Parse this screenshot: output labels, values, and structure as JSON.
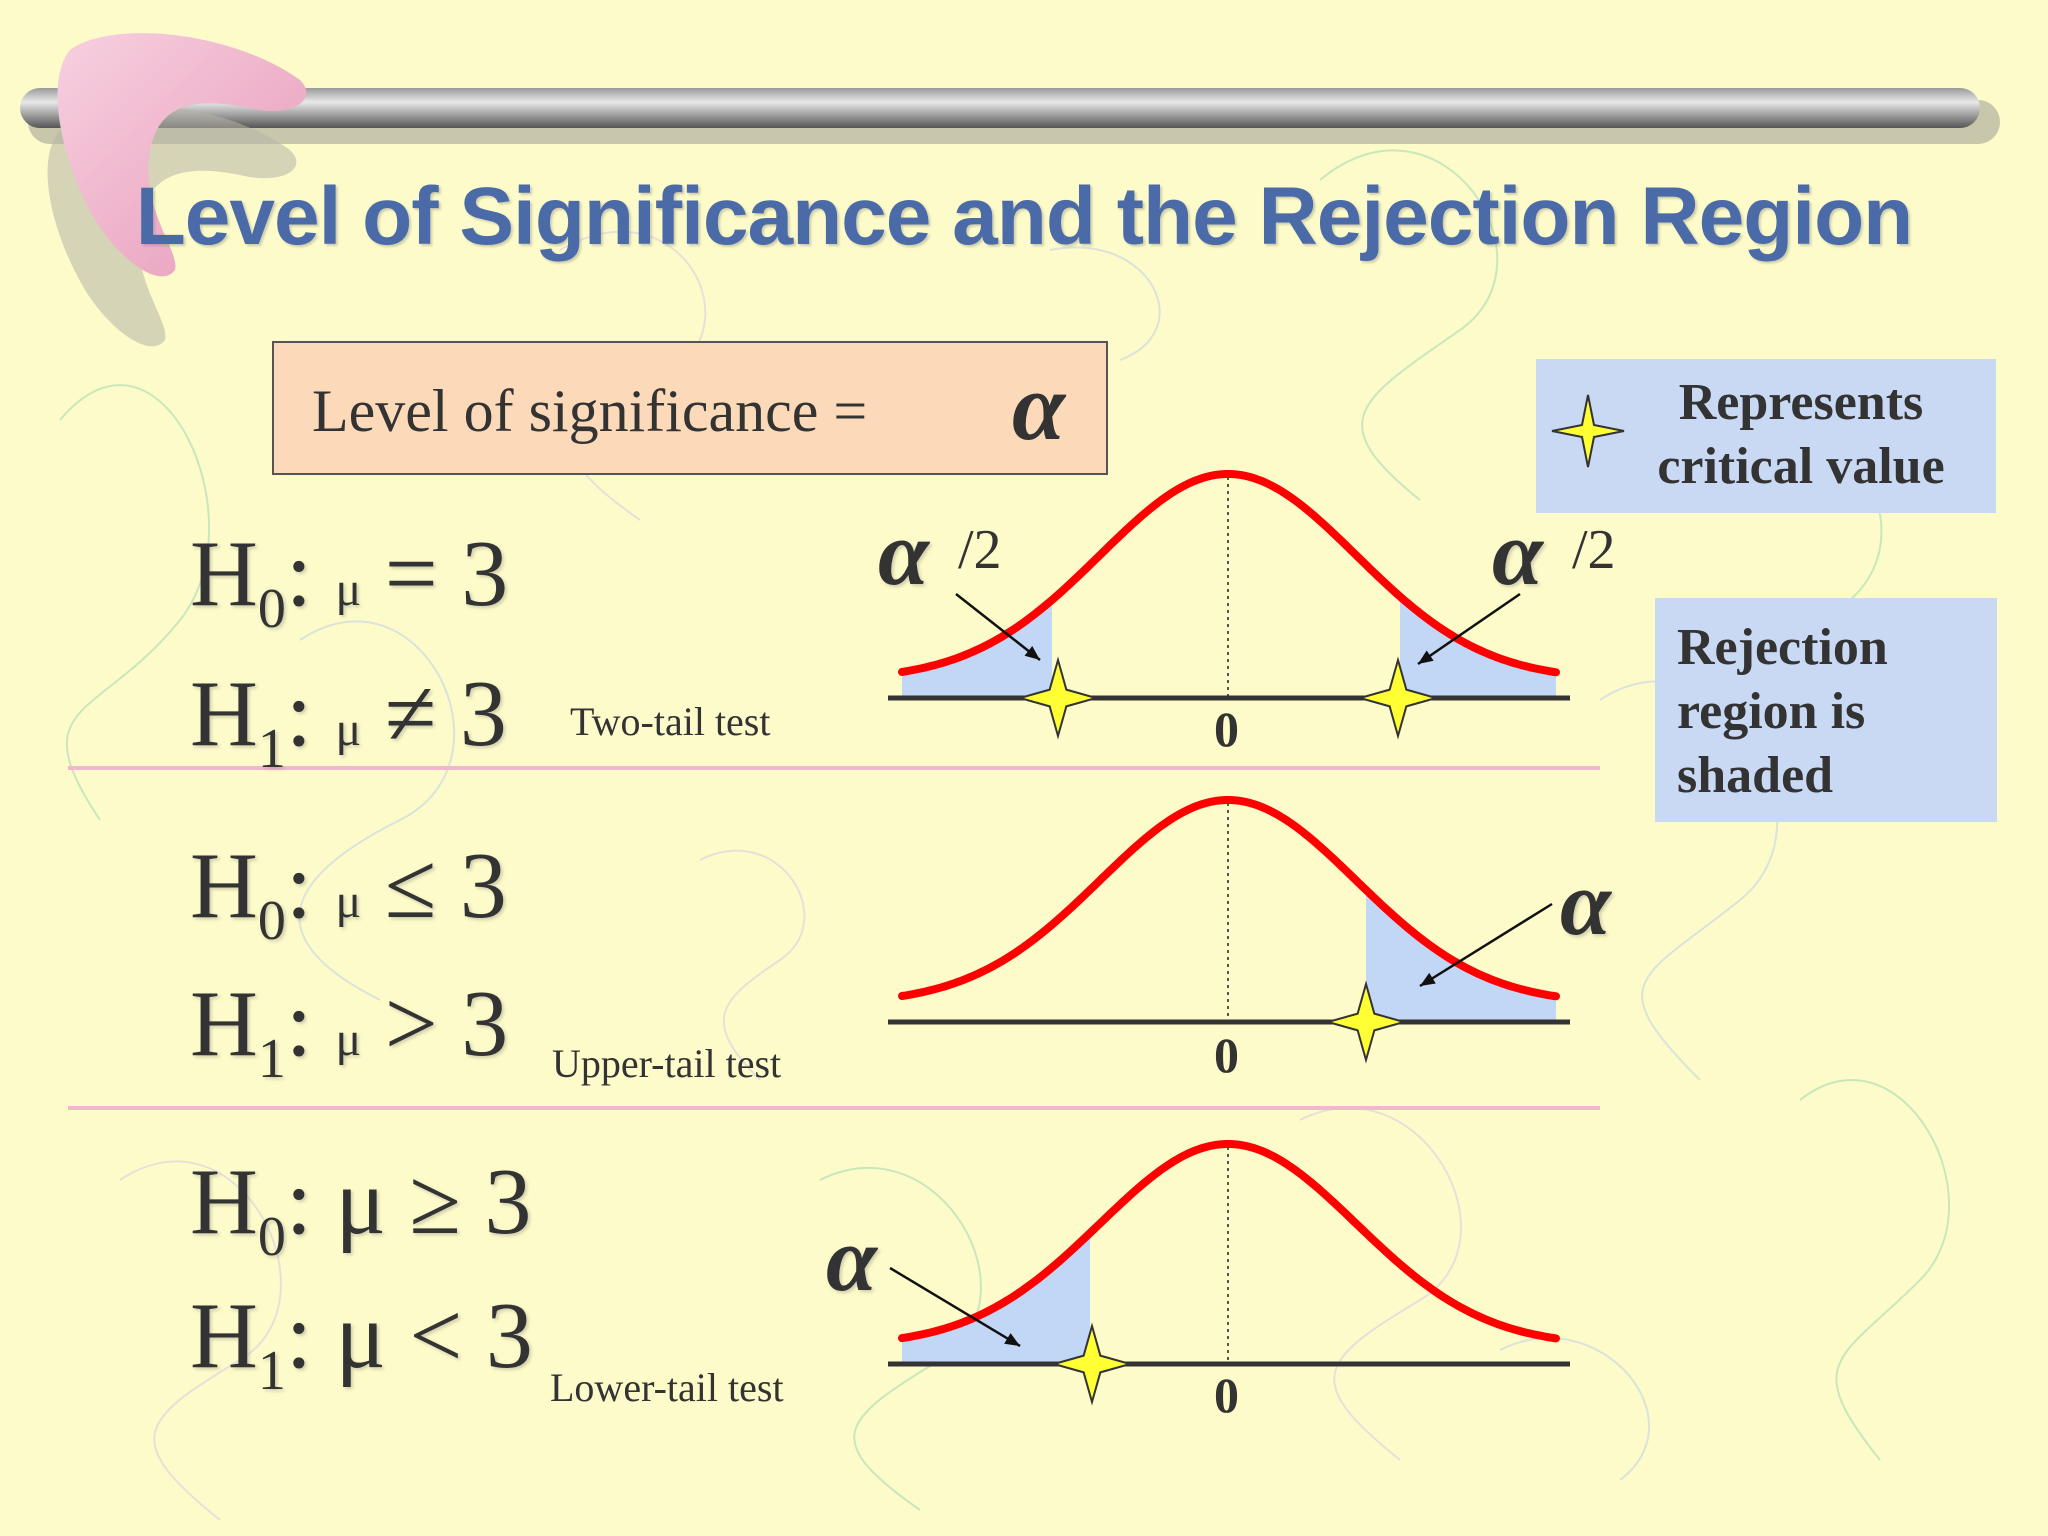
{
  "title": "Level of Significance and the Rejection Region",
  "significance": {
    "label": "Level of significance =",
    "symbol": "α"
  },
  "legend": {
    "critical": "Represents critical value",
    "rejection_lines": [
      "Rejection",
      "region is",
      "shaded"
    ]
  },
  "tests": [
    {
      "h0": {
        "prefix": "H",
        "sub": "0",
        "mid": ": ",
        "mu": "μ",
        "rel": " = 3"
      },
      "h1": {
        "prefix": "H",
        "sub": "1",
        "mid": ": ",
        "mu": "μ",
        "rel": " ≠ 3"
      },
      "label": "Two-tail test",
      "alpha_left": "α",
      "alpha_right": "α",
      "half": "/2",
      "zero": "0"
    },
    {
      "h0": {
        "prefix": "H",
        "sub": "0",
        "mid": ": ",
        "mu": "μ",
        "rel": " ≤ 3"
      },
      "h1": {
        "prefix": "H",
        "sub": "1",
        "mid": ": ",
        "mu": "μ",
        "rel": " > 3"
      },
      "label": "Upper-tail test",
      "alpha": "α",
      "zero": "0"
    },
    {
      "h0": {
        "prefix": "H",
        "sub": "0",
        "mid": ": ",
        "mu": "μ",
        "rel": " ≥ 3"
      },
      "h1": {
        "prefix": "H",
        "sub": "1",
        "mid": ": ",
        "mu": "μ",
        "rel": " < 3"
      },
      "label": "Lower-tail test",
      "alpha": "α",
      "zero": "0"
    }
  ],
  "colors": {
    "background": "#FDFBC9",
    "title": "#4A6AA8",
    "curve": "#FF0000",
    "shade": "#C2D6F6",
    "legend_bg": "#C9D9F4",
    "sig_box_bg": "#FCD9B8",
    "star": "#FFFF33"
  }
}
